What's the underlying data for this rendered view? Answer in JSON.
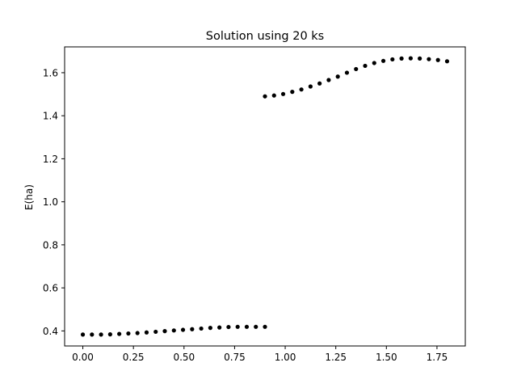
{
  "chart_data": {
    "type": "scatter",
    "title": "Solution using 20 ks",
    "xlabel": "",
    "ylabel": "E(ha)",
    "xlim": [
      -0.09,
      1.89
    ],
    "ylim": [
      0.33,
      1.72
    ],
    "xticks": [
      "0.00",
      "0.25",
      "0.50",
      "0.75",
      "1.00",
      "1.25",
      "1.50",
      "1.75"
    ],
    "yticks": [
      "0.4",
      "0.6",
      "0.8",
      "1.0",
      "1.2",
      "1.4",
      "1.6"
    ],
    "grid": false,
    "marker_color": "#000000",
    "series": [
      {
        "x": [
          0.0,
          0.045,
          0.09,
          0.135,
          0.18,
          0.225,
          0.27,
          0.315,
          0.36,
          0.405,
          0.45,
          0.495,
          0.54,
          0.585,
          0.63,
          0.675,
          0.72,
          0.765,
          0.81,
          0.855,
          0.9
        ],
        "values": [
          0.383,
          0.383,
          0.383,
          0.384,
          0.386,
          0.388,
          0.39,
          0.393,
          0.396,
          0.399,
          0.402,
          0.405,
          0.408,
          0.411,
          0.414,
          0.416,
          0.418,
          0.419,
          0.419,
          0.419,
          0.419
        ]
      },
      {
        "x": [
          0.9,
          0.945,
          0.99,
          1.035,
          1.08,
          1.125,
          1.17,
          1.215,
          1.26,
          1.305,
          1.35,
          1.395,
          1.44,
          1.485,
          1.53,
          1.575,
          1.62,
          1.665,
          1.71,
          1.755,
          1.8
        ],
        "values": [
          1.49,
          1.494,
          1.501,
          1.511,
          1.522,
          1.536,
          1.55,
          1.566,
          1.582,
          1.6,
          1.617,
          1.632,
          1.645,
          1.655,
          1.662,
          1.666,
          1.667,
          1.666,
          1.663,
          1.659,
          1.653
        ]
      }
    ]
  }
}
